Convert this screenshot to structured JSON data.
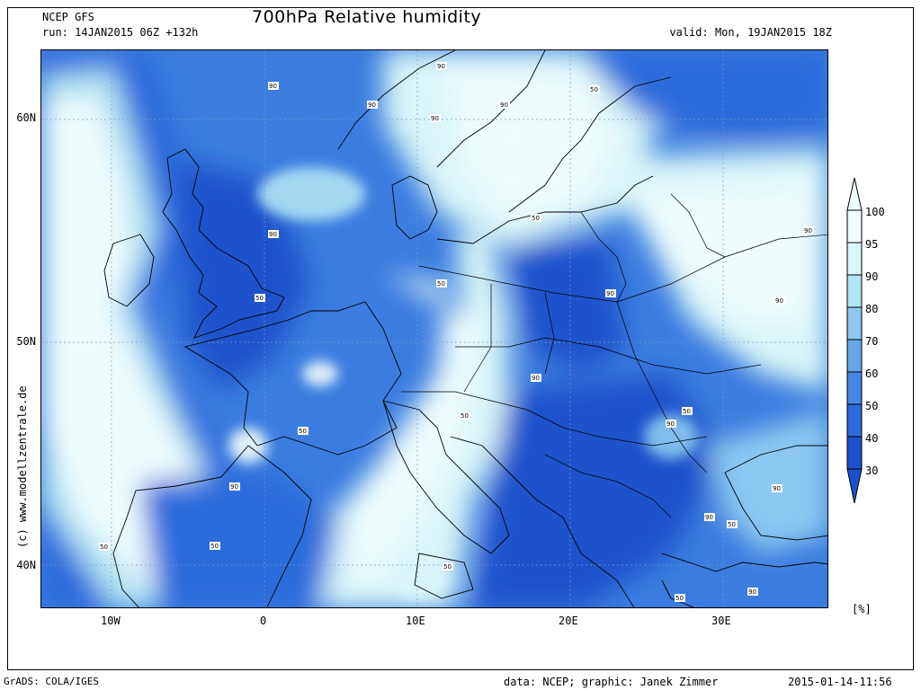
{
  "header": {
    "model": "NCEP GFS",
    "run": "run: 14JAN2015 06Z +132h",
    "title": "700hPa Relative humidity",
    "valid": "valid: Mon, 19JAN2015 18Z"
  },
  "credit_vertical": "(c) www.modellzentrale.de",
  "footer": {
    "left": "GrADS: COLA/IGES",
    "center": "data: NCEP; graphic: Janek Zimmer",
    "right": "2015-01-14-11:56"
  },
  "axes": {
    "x_ticks": [
      "10W",
      "0",
      "10E",
      "20E",
      "30E"
    ],
    "y_ticks": [
      "60N",
      "50N",
      "40N"
    ]
  },
  "colorbar": {
    "unit": "[%]",
    "levels": [
      "100",
      "95",
      "90",
      "80",
      "70",
      "60",
      "50",
      "40",
      "30"
    ],
    "colors": [
      "#f0fcfc",
      "#d8f6f8",
      "#b2e4f4",
      "#8cc8f0",
      "#64a8ea",
      "#4488e4",
      "#2a6cdc",
      "#1a52cc"
    ]
  },
  "contour_labels": [
    "90",
    "90",
    "90",
    "50",
    "90",
    "90",
    "90",
    "50",
    "90",
    "50",
    "50",
    "90",
    "90",
    "50",
    "90",
    "50",
    "50",
    "90",
    "50",
    "90",
    "50",
    "90",
    "50",
    "90",
    "50",
    "90",
    "50"
  ]
}
